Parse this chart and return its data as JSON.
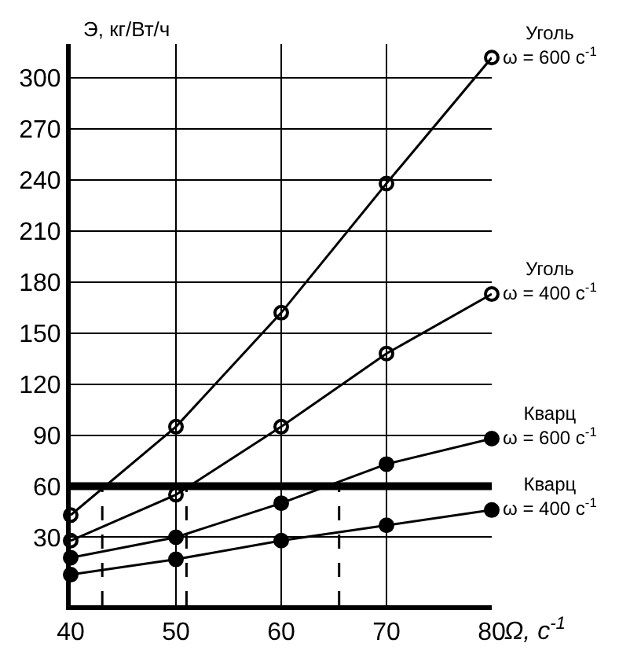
{
  "chart_data": {
    "type": "line",
    "ylabel": "Э, кг/Вт/ч",
    "xlabel": "Ω, c$^{-1}$",
    "x": [
      40,
      50,
      60,
      70,
      80
    ],
    "series": [
      {
        "name": "Уголь\nω = 600 с$^{-1}$",
        "color": "#000000",
        "values": [
          43,
          95,
          162,
          238,
          312
        ],
        "marker": "circle-open"
      },
      {
        "name": "Уголь\nω = 400 с$^{-1}$",
        "color": "#000000",
        "values": [
          28,
          55,
          95,
          138,
          173
        ],
        "marker": "circle-open"
      },
      {
        "name": "Кварц\nω = 600 с$^{-1}$",
        "color": "#000000",
        "values": [
          18,
          30,
          50,
          73,
          88
        ],
        "marker": "circle"
      },
      {
        "name": "Кварц\nω = 400 с$^{-1}$",
        "color": "#000000",
        "values": [
          8,
          17,
          28,
          37,
          46
        ],
        "marker": "circle"
      },
      {
        "color": "#000000",
        "x": [
          43,
          43
        ],
        "values": [
          -10,
          60
        ],
        "marker": "none",
        "line_style": "dashed"
      },
      {
        "color": "#000000",
        "x": [
          51,
          51
        ],
        "values": [
          -10,
          60
        ],
        "marker": "none",
        "line_style": "dashed"
      },
      {
        "color": "#000000",
        "x": [
          65.5,
          65.5
        ],
        "values": [
          -10,
          60
        ],
        "marker": "none",
        "line_style": "dashed"
      }
    ],
    "xlim": [
      40,
      80
    ],
    "xticks": [
      40,
      50,
      60,
      70,
      80
    ],
    "ylim": [
      -10,
      320
    ],
    "yticks": [
      30,
      60,
      90,
      120,
      150,
      180,
      210,
      240,
      270,
      300
    ],
    "ref_lines": [
      {
        "axis": "y",
        "value": 60,
        "color": "#000000"
      }
    ],
    "grid": true,
    "legend": false
  }
}
